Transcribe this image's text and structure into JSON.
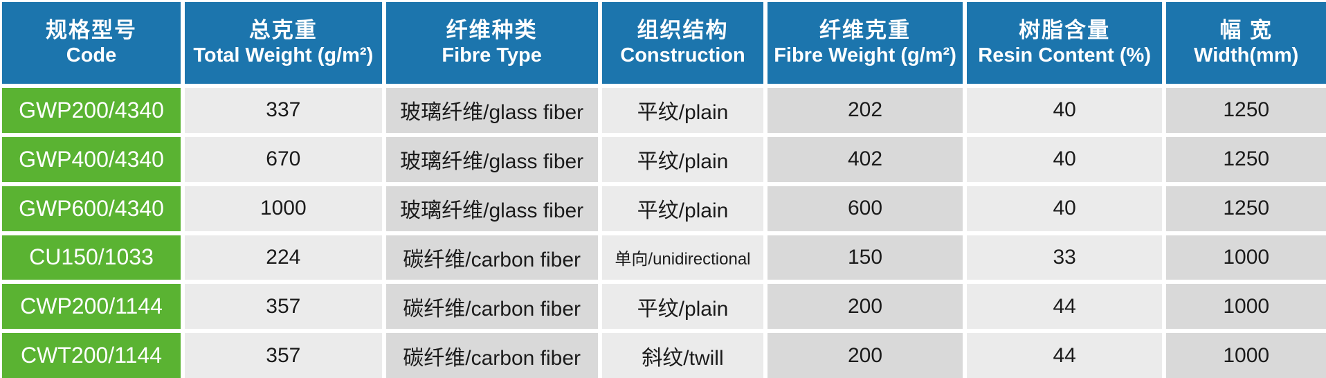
{
  "table": {
    "columns": [
      {
        "zh": "规格型号",
        "en": "Code"
      },
      {
        "zh": "总克重",
        "en": "Total Weight (g/m²)"
      },
      {
        "zh": "纤维种类",
        "en": "Fibre Type"
      },
      {
        "zh": "组织结构",
        "en": "Construction"
      },
      {
        "zh": "纤维克重",
        "en": "Fibre Weight (g/m²)"
      },
      {
        "zh": "树脂含量",
        "en": "Resin Content (%)"
      },
      {
        "zh": "幅 宽",
        "en": "Width(mm)"
      }
    ],
    "rows": [
      [
        "GWP200/4340",
        "337",
        "玻璃纤维/glass fiber",
        "平纹/plain",
        "202",
        "40",
        "1250"
      ],
      [
        "GWP400/4340",
        "670",
        "玻璃纤维/glass fiber",
        "平纹/plain",
        "402",
        "40",
        "1250"
      ],
      [
        "GWP600/4340",
        "1000",
        "玻璃纤维/glass fiber",
        "平纹/plain",
        "600",
        "40",
        "1250"
      ],
      [
        "CU150/1033",
        "224",
        "碳纤维/carbon fiber",
        "单向/unidirectional",
        "150",
        "33",
        "1000"
      ],
      [
        "CWP200/1144",
        "357",
        "碳纤维/carbon fiber",
        "平纹/plain",
        "200",
        "44",
        "1000"
      ],
      [
        "CWT200/1144",
        "357",
        "碳纤维/carbon fiber",
        "斜纹/twill",
        "200",
        "44",
        "1000"
      ]
    ],
    "colors": {
      "header_blue": "#1c75ad",
      "code_green": "#5ab332",
      "cell_light": "#ebebeb",
      "cell_dark": "#d9d9d9",
      "grid_white": "#ffffff",
      "text_dark": "#1b1b1b",
      "text_white": "#ffffff"
    }
  }
}
